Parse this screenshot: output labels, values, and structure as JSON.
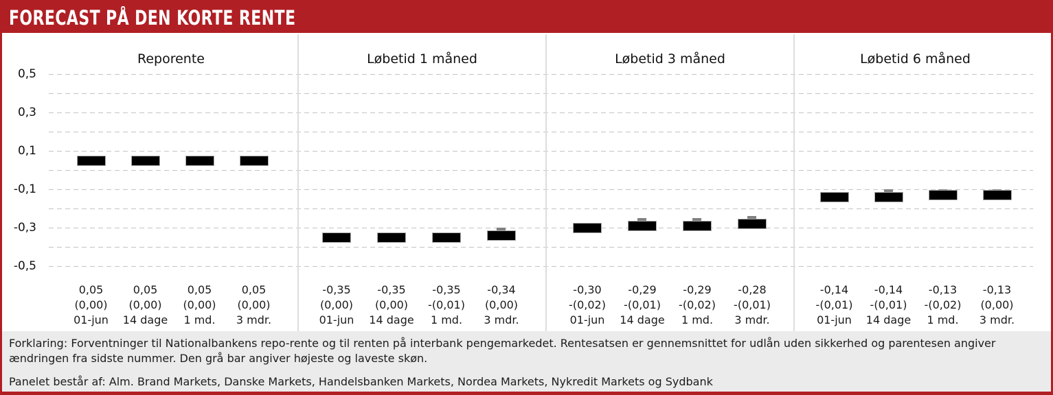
{
  "header": {
    "title": "FORECAST PÅ DEN KORTE RENTE"
  },
  "colors": {
    "accent_red": "#B01F24",
    "bar_black": "#000000",
    "range_gray": "#808080",
    "footer_bg": "#EBEBEB",
    "gridline": "#C3C3C3",
    "divider": "#DDDDDD"
  },
  "y_axis": {
    "tick_labels": [
      "0,5",
      "0,3",
      "0,1",
      "-0,1",
      "-0,3",
      "-0,5"
    ],
    "tick_values": [
      0.5,
      0.3,
      0.1,
      -0.1,
      -0.3,
      -0.5
    ],
    "min": -0.5,
    "max": 0.5,
    "grid_step": 0.1
  },
  "chart_data": {
    "type": "bar",
    "title": "FORECAST PÅ DEN KORTE RENTE",
    "ylim": [
      -0.5,
      0.5
    ],
    "grid": "horizontal dashed lines every 0.1",
    "legend": "black bar = average forecast; gray bar = highest/lowest estimate range",
    "categories": [
      "01-jun",
      "14 dage",
      "1 md.",
      "3 mdr."
    ],
    "panels": [
      {
        "title": "Reporente",
        "points": [
          {
            "x_label": "01-jun",
            "value": 0.05,
            "value_label": "0,05",
            "change_label": "(0,00)",
            "range_high": null
          },
          {
            "x_label": "14 dage",
            "value": 0.05,
            "value_label": "0,05",
            "change_label": "(0,00)",
            "range_high": null
          },
          {
            "x_label": "1 md.",
            "value": 0.05,
            "value_label": "0,05",
            "change_label": "(0,00)",
            "range_high": null
          },
          {
            "x_label": "3 mdr.",
            "value": 0.05,
            "value_label": "0,05",
            "change_label": "(0,00)",
            "range_high": null
          }
        ]
      },
      {
        "title": "Løbetid 1 måned",
        "points": [
          {
            "x_label": "01-jun",
            "value": -0.35,
            "value_label": "-0,35",
            "change_label": "(0,00)",
            "range_high": null
          },
          {
            "x_label": "14 dage",
            "value": -0.35,
            "value_label": "-0,35",
            "change_label": "(0,00)",
            "range_high": null
          },
          {
            "x_label": "1 md.",
            "value": -0.35,
            "value_label": "-0,35",
            "change_label": "-(0,01)",
            "range_high": null
          },
          {
            "x_label": "3 mdr.",
            "value": -0.34,
            "value_label": "-0,34",
            "change_label": "(0,00)",
            "range_high": -0.3
          }
        ]
      },
      {
        "title": "Løbetid 3 måned",
        "points": [
          {
            "x_label": "01-jun",
            "value": -0.3,
            "value_label": "-0,30",
            "change_label": "-(0,02)",
            "range_high": null
          },
          {
            "x_label": "14 dage",
            "value": -0.29,
            "value_label": "-0,29",
            "change_label": "-(0,01)",
            "range_high": -0.25
          },
          {
            "x_label": "1 md.",
            "value": -0.29,
            "value_label": "-0,29",
            "change_label": "-(0,02)",
            "range_high": -0.25
          },
          {
            "x_label": "3 mdr.",
            "value": -0.28,
            "value_label": "-0,28",
            "change_label": "-(0,01)",
            "range_high": -0.24
          }
        ]
      },
      {
        "title": "Løbetid 6 måned",
        "points": [
          {
            "x_label": "01-jun",
            "value": -0.14,
            "value_label": "-0,14",
            "change_label": "-(0,01)",
            "range_high": null
          },
          {
            "x_label": "14 dage",
            "value": -0.14,
            "value_label": "-0,14",
            "change_label": "-(0,01)",
            "range_high": -0.1
          },
          {
            "x_label": "1 md.",
            "value": -0.13,
            "value_label": "-0,13",
            "change_label": "-(0,02)",
            "range_high": -0.1
          },
          {
            "x_label": "3 mdr.",
            "value": -0.13,
            "value_label": "-0,13",
            "change_label": "(0,00)",
            "range_high": -0.1
          }
        ]
      }
    ]
  },
  "footer": {
    "explanation": "Forklaring: Forventninger til Nationalbankens repo-rente og til renten på interbank pengemarkedet. Rentesatsen er gennemsnittet for udlån uden sikkerhed og parentesen angiver ændringen fra sidste nummer. Den grå bar angiver højeste og laveste skøn.",
    "panel_members": "Panelet består af: Alm. Brand Markets, Danske Markets, Handelsbanken Markets, Nordea Markets, Nykredit Markets og Sydbank"
  }
}
